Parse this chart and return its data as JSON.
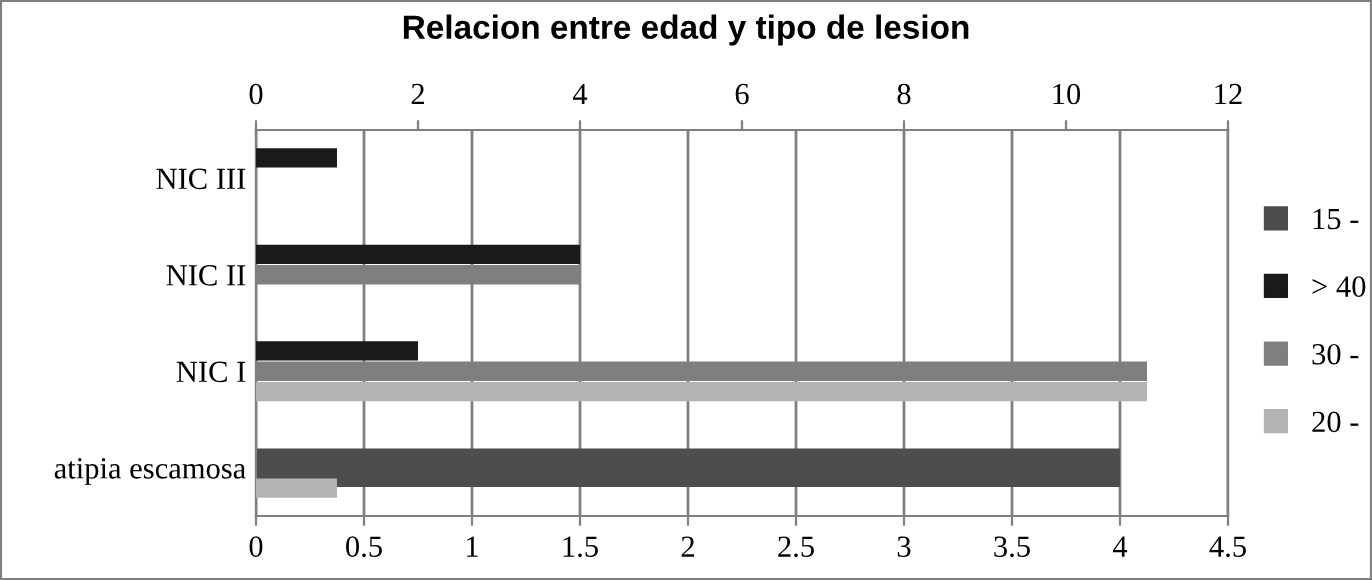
{
  "chart_data": {
    "type": "bar",
    "orientation": "horizontal",
    "title": "Relacion entre edad y tipo de lesion",
    "categories": [
      "NIC III",
      "NIC II",
      "NIC I",
      "atipia escamosa"
    ],
    "series": [
      {
        "name": "15 -",
        "color": "#4d4d4d",
        "values": [
          null,
          null,
          null,
          4
        ]
      },
      {
        "name": "> 40",
        "color": "#1a1a1a",
        "axis": "x2",
        "values": [
          1,
          4,
          2,
          null
        ]
      },
      {
        "name": "30 -",
        "color": "#7f7f7f",
        "axis": "x2",
        "values": [
          null,
          4,
          11,
          null
        ]
      },
      {
        "name": "20 -",
        "color": "#b3b3b3",
        "axis": "x2",
        "values": [
          null,
          null,
          11,
          1
        ]
      }
    ],
    "xlim": [
      0,
      4.5
    ],
    "xticks": [
      0,
      0.5,
      1,
      1.5,
      2,
      2.5,
      3,
      3.5,
      4,
      4.5
    ],
    "x2lim": [
      0,
      12
    ],
    "x2ticks": [
      0,
      2,
      4,
      6,
      8,
      10,
      12
    ],
    "grid": "x",
    "legend": "right"
  }
}
